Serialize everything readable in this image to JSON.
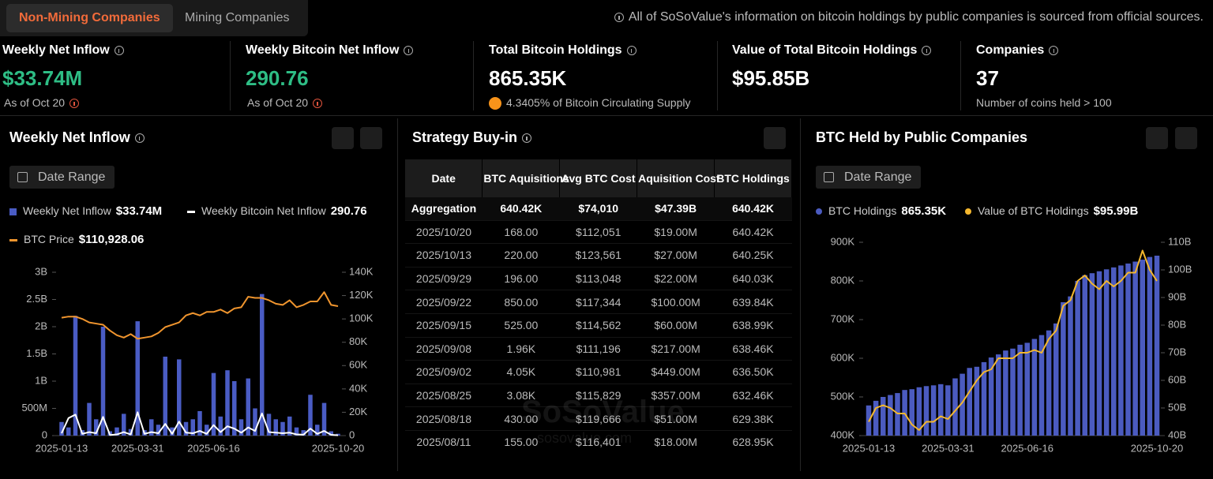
{
  "tabs": [
    "Non-Mining Companies",
    "Mining Companies"
  ],
  "notice": "All of SoSoValue's information on bitcoin holdings by public companies is sourced from official sources.",
  "stats": [
    {
      "label": "Weekly Net Inflow",
      "value": "$33.74M",
      "note": "As of Oct 20"
    },
    {
      "label": "Weekly Bitcoin Net Inflow",
      "value": "290.76",
      "note": "As of Oct 20"
    },
    {
      "label": "Total Bitcoin Holdings",
      "value": "865.35K",
      "note": "4.3405% of Bitcoin Circulating Supply"
    },
    {
      "label": "Value of Total Bitcoin Holdings",
      "value": "$95.85B"
    },
    {
      "label": "Companies",
      "value": "37",
      "note": "Number of coins held > 100"
    }
  ],
  "watermark": "SoSoValue",
  "watermark_url": "sosovalue.com",
  "inflow_chart": {
    "type": "bar",
    "title": "Weekly Net Inflow",
    "date_range": "Date Range",
    "categories": [
      "2025-01-13",
      null,
      null,
      null,
      null,
      null,
      null,
      null,
      null,
      null,
      null,
      "2025-03-31",
      null,
      null,
      null,
      null,
      null,
      null,
      null,
      null,
      null,
      null,
      "2025-06-16",
      null,
      null,
      null,
      null,
      null,
      null,
      null,
      null,
      null,
      null,
      null,
      null,
      null,
      null,
      null,
      null,
      null,
      "2025-10-20"
    ],
    "series": [
      {
        "name": "Weekly Net Inflow",
        "kind": "bar",
        "color": "#4a5cc4",
        "legend_value": "$33.74M",
        "values": [
          250000000,
          150000000,
          2200000000,
          100000000,
          600000000,
          300000000,
          2000000000,
          80000000,
          150000000,
          400000000,
          120000000,
          2100000000,
          100000000,
          300000000,
          200000000,
          1450000000,
          150000000,
          1400000000,
          250000000,
          300000000,
          450000000,
          200000000,
          1150000000,
          350000000,
          1200000000,
          1000000000,
          300000000,
          1050000000,
          500000000,
          2600000000,
          400000000,
          300000000,
          250000000,
          350000000,
          150000000,
          100000000,
          750000000,
          200000000,
          600000000,
          80000000,
          33740000
        ]
      },
      {
        "name": "Weekly Bitcoin Net Inflow",
        "kind": "line",
        "axis": "y2",
        "color": "#ffffff",
        "legend_value": "290.76",
        "values": [
          2000,
          15000,
          18000,
          1500,
          3000,
          2000,
          16000,
          500,
          1000,
          3000,
          1000,
          20000,
          1500,
          3000,
          2000,
          10000,
          1500,
          12000,
          2500,
          2000,
          4000,
          1500,
          9000,
          3000,
          8000,
          6000,
          2500,
          7000,
          4000,
          19000,
          3000,
          2500,
          2000,
          2500,
          1000,
          800,
          6000,
          1500,
          4000,
          700,
          290.76
        ]
      },
      {
        "name": "BTC Price",
        "kind": "line",
        "axis": "y2",
        "color": "#f0952e",
        "legend_value": "$110,928.06",
        "values": [
          101000,
          102000,
          102000,
          100000,
          97000,
          96000,
          95000,
          90000,
          86000,
          84000,
          87000,
          83000,
          84000,
          85000,
          88000,
          93000,
          95000,
          97000,
          103000,
          105000,
          103000,
          106000,
          106000,
          108000,
          105000,
          109000,
          110000,
          119000,
          118000,
          118000,
          116000,
          113000,
          112000,
          116000,
          110000,
          112000,
          115000,
          115000,
          123000,
          112000,
          110928.06
        ]
      }
    ],
    "ylim": [
      0,
      3000000000
    ],
    "yticks": [
      0,
      {
        "value": 500000000,
        "label": "500M"
      },
      {
        "value": 1000000000,
        "label": "1B"
      },
      {
        "value": 1500000000,
        "label": "1.5B"
      },
      {
        "value": 2000000000,
        "label": "2B"
      },
      {
        "value": 2500000000,
        "label": "2.5B"
      },
      {
        "value": 3000000000,
        "label": "3B"
      }
    ],
    "y2lim": [
      0,
      140000
    ],
    "y2ticks": [
      0,
      {
        "value": 20000,
        "label": "20K"
      },
      {
        "value": 40000,
        "label": "40K"
      },
      {
        "value": 60000,
        "label": "60K"
      },
      {
        "value": 80000,
        "label": "80K"
      },
      {
        "value": 100000,
        "label": "100K"
      },
      {
        "value": 120000,
        "label": "120K"
      },
      {
        "value": 140000,
        "label": "140K"
      }
    ]
  },
  "strategy": {
    "title": "Strategy Buy-in",
    "columns": [
      "Date",
      "BTC Aquisitions",
      "Avg BTC Cost",
      "Aquisition Cost",
      "BTC Holdings"
    ],
    "rows": [
      [
        "Aggregation",
        "640.42K",
        "$74,010",
        "$47.39B",
        "640.42K"
      ],
      [
        "2025/10/20",
        "168.00",
        "$112,051",
        "$19.00M",
        "640.42K"
      ],
      [
        "2025/10/13",
        "220.00",
        "$123,561",
        "$27.00M",
        "640.25K"
      ],
      [
        "2025/09/29",
        "196.00",
        "$113,048",
        "$22.00M",
        "640.03K"
      ],
      [
        "2025/09/22",
        "850.00",
        "$117,344",
        "$100.00M",
        "639.84K"
      ],
      [
        "2025/09/15",
        "525.00",
        "$114,562",
        "$60.00M",
        "638.99K"
      ],
      [
        "2025/09/08",
        "1.96K",
        "$111,196",
        "$217.00M",
        "638.46K"
      ],
      [
        "2025/09/02",
        "4.05K",
        "$110,981",
        "$449.00M",
        "636.50K"
      ],
      [
        "2025/08/25",
        "3.08K",
        "$115,829",
        "$357.00M",
        "632.46K"
      ],
      [
        "2025/08/18",
        "430.00",
        "$119,666",
        "$51.00M",
        "629.38K"
      ],
      [
        "2025/08/11",
        "155.00",
        "$116,401",
        "$18.00M",
        "628.95K"
      ]
    ]
  },
  "holdings_chart": {
    "type": "bar",
    "title": "BTC Held by Public Companies",
    "date_range": "Date Range",
    "categories": [
      "2025-01-13",
      null,
      null,
      null,
      null,
      null,
      null,
      null,
      null,
      null,
      null,
      "2025-03-31",
      null,
      null,
      null,
      null,
      null,
      null,
      null,
      null,
      null,
      null,
      "2025-06-16",
      null,
      null,
      null,
      null,
      null,
      null,
      null,
      null,
      null,
      null,
      null,
      null,
      null,
      null,
      null,
      null,
      null,
      "2025-10-20"
    ],
    "series": [
      {
        "name": "BTC Holdings",
        "kind": "bar",
        "color": "#4b5bc0",
        "legend_value": "865.35K",
        "values": [
          478000,
          490000,
          500000,
          505000,
          510000,
          518000,
          520000,
          525000,
          528000,
          530000,
          533000,
          530000,
          548000,
          560000,
          575000,
          578000,
          590000,
          602000,
          610000,
          620000,
          625000,
          635000,
          640000,
          650000,
          660000,
          672000,
          690000,
          745000,
          760000,
          800000,
          815000,
          820000,
          825000,
          830000,
          835000,
          840000,
          845000,
          850000,
          855000,
          862000,
          865350
        ]
      },
      {
        "name": "Value of BTC Holdings",
        "kind": "line",
        "axis": "y2",
        "color": "#f5b82e",
        "legend_value": "$95.99B",
        "values": [
          45000000000,
          50000000000,
          51000000000,
          50000000000,
          48000000000,
          48000000000,
          44000000000,
          42000000000,
          45000000000,
          45000000000,
          47000000000,
          46000000000,
          49000000000,
          52000000000,
          56000000000,
          60000000000,
          63000000000,
          64000000000,
          68000000000,
          68000000000,
          68000000000,
          70000000000,
          70000000000,
          71000000000,
          70000000000,
          75000000000,
          78000000000,
          87000000000,
          89000000000,
          96000000000,
          98000000000,
          95000000000,
          93000000000,
          96000000000,
          94000000000,
          96000000000,
          99000000000,
          99000000000,
          107000000000,
          100000000000,
          95990000000
        ]
      }
    ],
    "ylim": [
      400000,
      900000
    ],
    "yticks": [
      {
        "value": 400000,
        "label": "400K"
      },
      {
        "value": 500000,
        "label": "500K"
      },
      {
        "value": 600000,
        "label": "600K"
      },
      {
        "value": 700000,
        "label": "700K"
      },
      {
        "value": 800000,
        "label": "800K"
      },
      {
        "value": 900000,
        "label": "900K"
      }
    ],
    "y2lim": [
      40000000000,
      110000000000
    ],
    "y2ticks": [
      {
        "value": 40000000000,
        "label": "40B"
      },
      {
        "value": 50000000000,
        "label": "50B"
      },
      {
        "value": 60000000000,
        "label": "60B"
      },
      {
        "value": 70000000000,
        "label": "70B"
      },
      {
        "value": 80000000000,
        "label": "80B"
      },
      {
        "value": 90000000000,
        "label": "90B"
      },
      {
        "value": 100000000000,
        "label": "100B"
      },
      {
        "value": 110000000000,
        "label": "110B"
      }
    ]
  }
}
